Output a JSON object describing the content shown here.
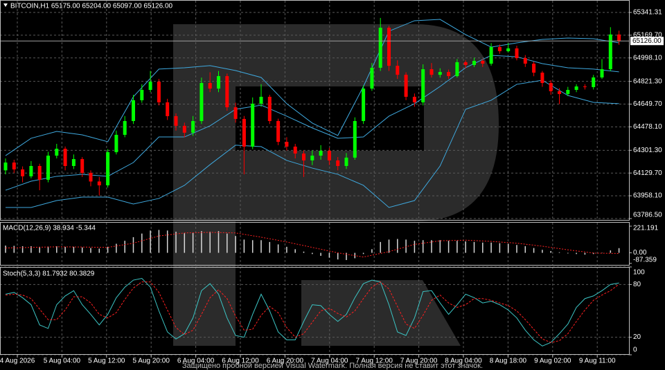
{
  "chart_data": [
    {
      "type": "candlestick",
      "title": "BITCOIN,H1  65175.00 65204.00 65097.00 65126.00",
      "up_color": "#00ff00",
      "down_color": "#ff0000",
      "ylim": [
        63776,
        65430
      ],
      "yticks": [
        65341.31,
        {
          "value": 65169.7,
          "label": "65169.70"
        },
        {
          "value": 64998.1,
          "label": "64998.10"
        },
        {
          "value": 64821.3,
          "label": "64821.30"
        },
        {
          "value": 64649.7,
          "label": "64649.70"
        },
        {
          "value": 64478.1,
          "label": "64478.10"
        },
        {
          "value": 64301.3,
          "label": "64301.30"
        },
        {
          "value": 64129.7,
          "label": "64129.70"
        },
        {
          "value": 63958.1,
          "label": "63958.10"
        },
        {
          "value": 63786.5,
          "label": "63786.50"
        }
      ],
      "grid": true,
      "last_price_label": "65126.00",
      "ohlc": [
        [
          64150,
          64240,
          64120,
          64209
        ],
        [
          64209,
          64230,
          64130,
          64157
        ],
        [
          64157,
          64180,
          64060,
          64105
        ],
        [
          64105,
          64220,
          64090,
          64183
        ],
        [
          64183,
          64200,
          64000,
          64079
        ],
        [
          64079,
          64290,
          64060,
          64261
        ],
        [
          64261,
          64350,
          64240,
          64313
        ],
        [
          64313,
          64330,
          64150,
          64183
        ],
        [
          64183,
          64270,
          64160,
          64235
        ],
        [
          64235,
          64250,
          64100,
          64131
        ],
        [
          64131,
          64150,
          64030,
          64066
        ],
        [
          64066,
          64100,
          63960,
          64037
        ],
        [
          64037,
          64310,
          64020,
          64287
        ],
        [
          64287,
          64450,
          64270,
          64418
        ],
        [
          64418,
          64560,
          64400,
          64522
        ],
        [
          64522,
          64720,
          64500,
          64679
        ],
        [
          64679,
          64800,
          64660,
          64757
        ],
        [
          64757,
          64900,
          64740,
          64819
        ],
        [
          64819,
          64840,
          64640,
          64663
        ],
        [
          64663,
          64690,
          64530,
          64559
        ],
        [
          64559,
          64580,
          64450,
          64486
        ],
        [
          64486,
          64510,
          64400,
          64434
        ],
        [
          64434,
          64560,
          64410,
          64522
        ],
        [
          64522,
          64850,
          64500,
          64809
        ],
        [
          64809,
          64890,
          64740,
          64767
        ],
        [
          64767,
          64900,
          64740,
          64861
        ],
        [
          64861,
          64880,
          64600,
          64626
        ],
        [
          64626,
          64660,
          64510,
          64538
        ],
        [
          64538,
          64560,
          64120,
          64329
        ],
        [
          64329,
          64700,
          64310,
          64653
        ],
        [
          64653,
          64800,
          64630,
          64705
        ],
        [
          64705,
          64720,
          64500,
          64522
        ],
        [
          64522,
          64540,
          64340,
          64365
        ],
        [
          64365,
          64400,
          64300,
          64329
        ],
        [
          64329,
          64350,
          64240,
          64277
        ],
        [
          64277,
          64300,
          64100,
          64225
        ],
        [
          64225,
          64300,
          64190,
          64261
        ],
        [
          64261,
          64340,
          64230,
          64298
        ],
        [
          64298,
          64320,
          64190,
          64225
        ],
        [
          64225,
          64250,
          64150,
          64183
        ],
        [
          64183,
          64280,
          64160,
          64246
        ],
        [
          64246,
          64550,
          64230,
          64522
        ],
        [
          64522,
          64790,
          64500,
          64767
        ],
        [
          64767,
          64960,
          64750,
          64924
        ],
        [
          64924,
          65300,
          64900,
          65226
        ],
        [
          65226,
          65240,
          64900,
          64939
        ],
        [
          64939,
          64980,
          64840,
          64871
        ],
        [
          64871,
          64890,
          64680,
          64705
        ],
        [
          64705,
          64730,
          64630,
          64663
        ],
        [
          64663,
          64950,
          64640,
          64913
        ],
        [
          64913,
          64960,
          64850,
          64871
        ],
        [
          64871,
          64920,
          64850,
          64892
        ],
        [
          64892,
          64910,
          64840,
          64861
        ],
        [
          64861,
          64990,
          64850,
          64966
        ],
        [
          64966,
          64980,
          64920,
          64945
        ],
        [
          64945,
          65000,
          64930,
          64976
        ],
        [
          64976,
          64990,
          64930,
          64955
        ],
        [
          64955,
          65110,
          64940,
          65080
        ],
        [
          65080,
          65100,
          65030,
          65049
        ],
        [
          65049,
          65110,
          65040,
          65070
        ],
        [
          65070,
          65090,
          64980,
          64997
        ],
        [
          64997,
          65020,
          64930,
          64955
        ],
        [
          64955,
          64970,
          64860,
          64887
        ],
        [
          64887,
          64900,
          64780,
          64809
        ],
        [
          64809,
          64830,
          64720,
          64747
        ],
        [
          64747,
          64770,
          64650,
          64726
        ],
        [
          64726,
          64780,
          64710,
          64757
        ],
        [
          64757,
          64800,
          64740,
          64783
        ],
        [
          64783,
          64800,
          64760,
          64778
        ],
        [
          64778,
          64870,
          64760,
          64851
        ],
        [
          64851,
          64990,
          64840,
          64913
        ],
        [
          64913,
          65230,
          64900,
          65175
        ],
        [
          65175,
          65204,
          65097,
          65126
        ]
      ],
      "band_color": "#3fa9df",
      "band_x": [
        0,
        3,
        6,
        9,
        12,
        15,
        18,
        21,
        24,
        27,
        30,
        33,
        36,
        39,
        42,
        45,
        48,
        51,
        54,
        57,
        60,
        63,
        66,
        69,
        72
      ],
      "bands": [
        [
          64261,
          64392,
          64444,
          64418,
          64366,
          64705,
          64914,
          64924,
          64940,
          64903,
          64851,
          64653,
          64507,
          64413,
          64783,
          65200,
          65279,
          65289,
          65174,
          65080,
          65112,
          65138,
          65148,
          65143,
          65112
        ],
        [
          64000,
          64068,
          64105,
          64120,
          64105,
          64209,
          64402,
          64402,
          64486,
          64611,
          64642,
          64559,
          64470,
          64392,
          64402,
          64559,
          64653,
          64783,
          64924,
          65018,
          65007,
          64955,
          64924,
          64914,
          64893
        ],
        [
          63870,
          63870,
          63922,
          63948,
          63948,
          63896,
          63938,
          64037,
          64193,
          64340,
          64329,
          64225,
          64167,
          64120,
          64037,
          63870,
          63922,
          64183,
          64611,
          64679,
          64799,
          64830,
          64715,
          64663,
          64653
        ]
      ]
    },
    {
      "type": "macd",
      "title": "MACD(12,26,9) 38.934 -5.344",
      "ylim": [
        -100,
        250
      ],
      "yticks": [
        221.191,
        {
          "value": 0,
          "label": "0.00"
        },
        -87.359
      ],
      "histogram_color": "#d8d8d8",
      "signal_color": "#ff2020",
      "histogram": [
        60,
        58,
        55,
        55,
        50,
        52,
        55,
        50,
        50,
        45,
        40,
        35,
        50,
        75,
        100,
        130,
        160,
        185,
        190,
        185,
        175,
        165,
        165,
        180,
        175,
        180,
        160,
        140,
        110,
        105,
        105,
        90,
        70,
        50,
        30,
        10,
        -10,
        -25,
        -40,
        -55,
        -60,
        -45,
        -10,
        30,
        90,
        110,
        115,
        110,
        100,
        105,
        105,
        105,
        100,
        100,
        95,
        90,
        85,
        85,
        80,
        75,
        65,
        55,
        40,
        25,
        15,
        5,
        -5,
        -10,
        -15,
        -10,
        0,
        20,
        38.934
      ],
      "signal_x": [
        0,
        3,
        6,
        9,
        12,
        15,
        18,
        21,
        24,
        27,
        30,
        33,
        36,
        39,
        42,
        45,
        48,
        51,
        54,
        57,
        60,
        63,
        66,
        69,
        72
      ],
      "signal": [
        40,
        45,
        50,
        48,
        45,
        80,
        140,
        165,
        170,
        165,
        130,
        90,
        45,
        0,
        -35,
        10,
        70,
        100,
        105,
        95,
        80,
        55,
        25,
        -2,
        -5.344
      ]
    },
    {
      "type": "stochastic",
      "title": "Stoch(5,3,3) 81.7932 80.3829",
      "ylim": [
        0,
        100
      ],
      "yticks": [
        100,
        80,
        20,
        0
      ],
      "grid": true,
      "k_color": "#3cc6c6",
      "d_color": "#ff2020",
      "k": [
        69,
        71,
        65,
        57,
        34,
        30,
        57,
        67,
        73,
        57,
        46,
        34,
        46,
        65,
        77,
        85,
        87,
        77,
        50,
        26,
        18,
        24,
        42,
        73,
        81,
        69,
        42,
        22,
        20,
        46,
        69,
        50,
        26,
        17,
        17,
        38,
        57,
        56,
        46,
        38,
        46,
        65,
        81,
        85,
        83,
        57,
        26,
        22,
        42,
        72,
        73,
        59,
        46,
        57,
        69,
        65,
        59,
        61,
        57,
        51,
        42,
        28,
        17,
        10,
        14,
        24,
        35,
        54,
        64,
        67,
        73,
        80,
        81.7932
      ],
      "d": [
        68,
        69,
        68,
        64,
        52,
        40,
        40,
        51,
        66,
        66,
        59,
        46,
        42,
        48,
        63,
        76,
        83,
        83,
        71,
        51,
        31,
        23,
        28,
        46,
        65,
        74,
        64,
        44,
        28,
        29,
        45,
        55,
        48,
        31,
        20,
        24,
        37,
        50,
        53,
        47,
        43,
        50,
        64,
        77,
        83,
        75,
        55,
        35,
        30,
        45,
        62,
        68,
        59,
        54,
        57,
        64,
        64,
        62,
        59,
        56,
        50,
        40,
        29,
        18,
        14,
        16,
        24,
        38,
        51,
        62,
        68,
        73,
        80.3829
      ]
    }
  ],
  "x_labels": [
    "4 Aug 2026",
    "5 Aug 04:00",
    "5 Aug 12:00",
    "5 Aug 20:00",
    "6 Aug 04:00",
    "6 Aug 12:00",
    "6 Aug 20:00",
    "7 Aug 04:00",
    "7 Aug 12:00",
    "7 Aug 20:00",
    "8 Aug 04:00",
    "8 Aug 18:00",
    "9 Aug 02:00",
    "9 Aug 11:00"
  ],
  "watermark": "Защищено пробной версией Visual Watermark. Полная версия не ставит этот значок."
}
